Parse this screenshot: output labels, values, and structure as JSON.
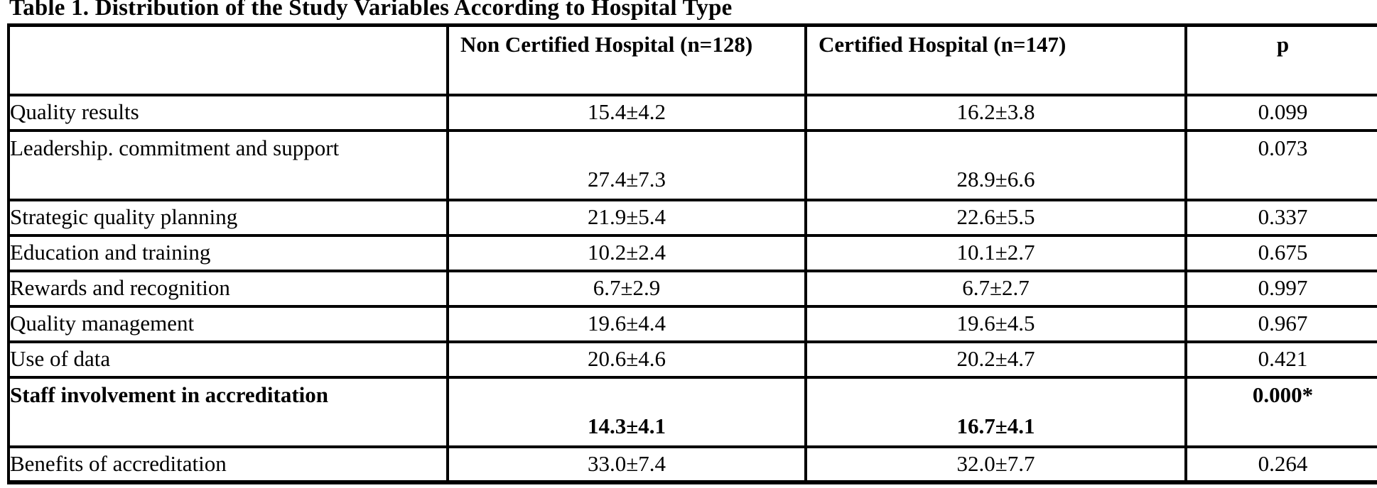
{
  "title": "Table 1. Distribution of the Study Variables According to Hospital Type",
  "colors": {
    "text": "#000000",
    "background": "#ffffff",
    "border": "#000000"
  },
  "table": {
    "headers": {
      "variable": "",
      "non_certified": "Non Certified Hospital (n=128)",
      "certified": "Certified Hospital (n=147)",
      "p": "p"
    },
    "rows": [
      {
        "label": "Quality results",
        "non_certified": "15.4±4.2",
        "certified": "16.2±3.8",
        "p": "0.099",
        "emphasis": false
      },
      {
        "label": "Leadership. commitment and support",
        "non_certified": "27.4±7.3",
        "certified": "28.9±6.6",
        "p": "0.073",
        "emphasis": false
      },
      {
        "label": "Strategic quality planning",
        "non_certified": "21.9±5.4",
        "certified": "22.6±5.5",
        "p": "0.337",
        "emphasis": false
      },
      {
        "label": "Education and training",
        "non_certified": "10.2±2.4",
        "certified": "10.1±2.7",
        "p": "0.675",
        "emphasis": false
      },
      {
        "label": "Rewards and recognition",
        "non_certified": "6.7±2.9",
        "certified": "6.7±2.7",
        "p": "0.997",
        "emphasis": false
      },
      {
        "label": "Quality management",
        "non_certified": "19.6±4.4",
        "certified": "19.6±4.5",
        "p": "0.967",
        "emphasis": false
      },
      {
        "label": "Use of data",
        "non_certified": "20.6±4.6",
        "certified": "20.2±4.7",
        "p": "0.421",
        "emphasis": false
      },
      {
        "label": "Staff involvement in accreditation",
        "non_certified": "14.3±4.1",
        "certified": "16.7±4.1",
        "p": "0.000*",
        "emphasis": true
      },
      {
        "label": "Benefits of accreditation",
        "non_certified": "33.0±7.4",
        "certified": "32.0±7.7",
        "p": "0.264",
        "emphasis": false
      }
    ]
  }
}
